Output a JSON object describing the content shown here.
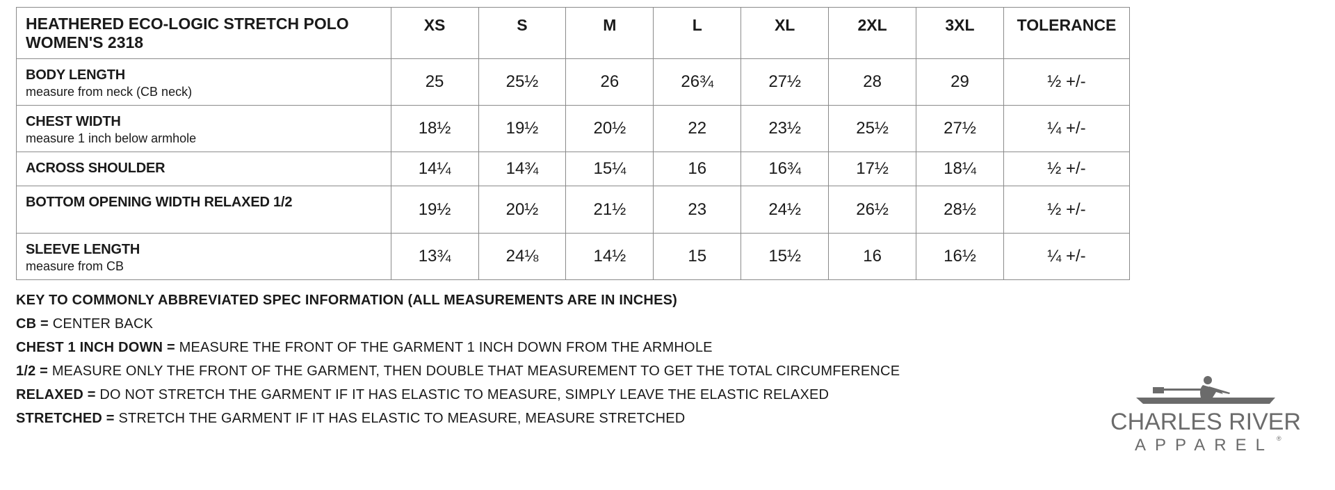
{
  "table": {
    "title_line1": "HEATHERED ECO-LOGIC STRETCH POLO",
    "title_line2": "WOMEN'S 2318",
    "sizes": [
      "XS",
      "S",
      "M",
      "L",
      "XL",
      "2XL",
      "3XL"
    ],
    "tolerance_header": "TOLERANCE",
    "rows": [
      {
        "label": "BODY LENGTH",
        "sub": "measure from neck (CB neck)",
        "values": [
          "25",
          "25½",
          "26",
          "26¾",
          "27½",
          "28",
          "29"
        ],
        "tolerance": "½ +/-"
      },
      {
        "label": "CHEST WIDTH",
        "sub": "measure 1 inch below armhole",
        "values": [
          "18½",
          "19½",
          "20½",
          "22",
          "23½",
          "25½",
          "27½"
        ],
        "tolerance": "¼ +/-"
      },
      {
        "label": "ACROSS SHOULDER",
        "sub": "",
        "values": [
          "14¼",
          "14¾",
          "15¼",
          "16",
          "16¾",
          "17½",
          "18¼"
        ],
        "tolerance": "½ +/-"
      },
      {
        "label": "BOTTOM OPENING WIDTH RELAXED 1/2",
        "sub": "",
        "values": [
          "19½",
          "20½",
          "21½",
          "23",
          "24½",
          "26½",
          "28½"
        ],
        "tolerance": "½ +/-"
      },
      {
        "label": "SLEEVE LENGTH",
        "sub": "measure from CB",
        "values": [
          "13¾",
          "24⅛",
          "14½",
          "15",
          "15½",
          "16",
          "16½"
        ],
        "tolerance": "¼ +/-"
      }
    ]
  },
  "key": {
    "heading": "KEY TO COMMONLY ABBREVIATED SPEC INFORMATION (ALL MEASUREMENTS ARE IN INCHES)",
    "items": [
      {
        "term": "CB =",
        "definition": "CENTER BACK"
      },
      {
        "term": "CHEST 1 INCH DOWN =",
        "definition": "MEASURE THE FRONT OF THE GARMENT 1 INCH DOWN FROM THE ARMHOLE"
      },
      {
        "term": "1/2 =",
        "definition": "MEASURE ONLY THE FRONT OF THE GARMENT, THEN DOUBLE THAT MEASUREMENT TO GET THE TOTAL CIRCUMFERENCE"
      },
      {
        "term": "RELAXED =",
        "definition": "DO NOT STRETCH THE GARMENT IF IT HAS ELASTIC TO MEASURE, SIMPLY LEAVE THE ELASTIC RELAXED"
      },
      {
        "term": "STRETCHED =",
        "definition": "STRETCH THE GARMENT IF IT HAS ELASTIC TO MEASURE, MEASURE STRETCHED"
      }
    ]
  },
  "logo": {
    "line1": "CHARLES RIVER",
    "line2": "APPAREL",
    "mark": "®",
    "color": "#6b6b6b",
    "icon": "rower-icon"
  }
}
